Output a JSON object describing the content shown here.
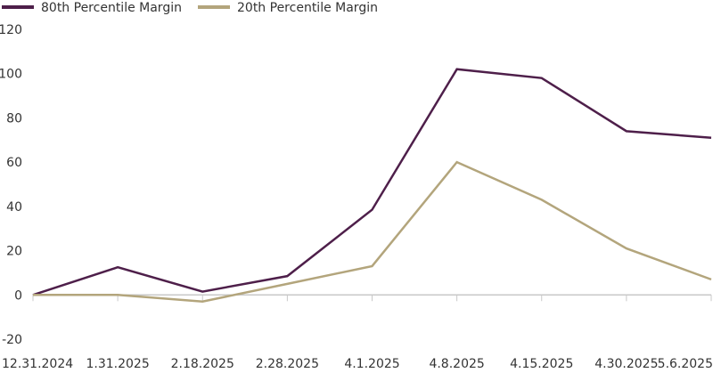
{
  "chart_data": {
    "type": "line",
    "title": "",
    "xlabel": "",
    "ylabel": "",
    "categories": [
      "12.31.2024",
      "1.31.2025",
      "2.18.2025",
      "2.28.2025",
      "4.1.2025",
      "4.8.2025",
      "4.15.2025",
      "4.30.2025",
      "5.6.2025"
    ],
    "ylim": [
      -20,
      120
    ],
    "yticks": [
      -20,
      0,
      20,
      40,
      60,
      80,
      100,
      120
    ],
    "grid": false,
    "legend_position": "top-left",
    "series": [
      {
        "name": "80th Percentile Margin",
        "color": "#4e1f4a",
        "values": [
          0,
          12.5,
          1.5,
          8.5,
          38.5,
          102,
          98,
          74,
          71
        ]
      },
      {
        "name": "20th Percentile Margin",
        "color": "#b3a57c",
        "values": [
          0,
          0,
          -3,
          5,
          13,
          60,
          43,
          21,
          7
        ]
      }
    ],
    "axis_color": "#c8c8c8"
  }
}
